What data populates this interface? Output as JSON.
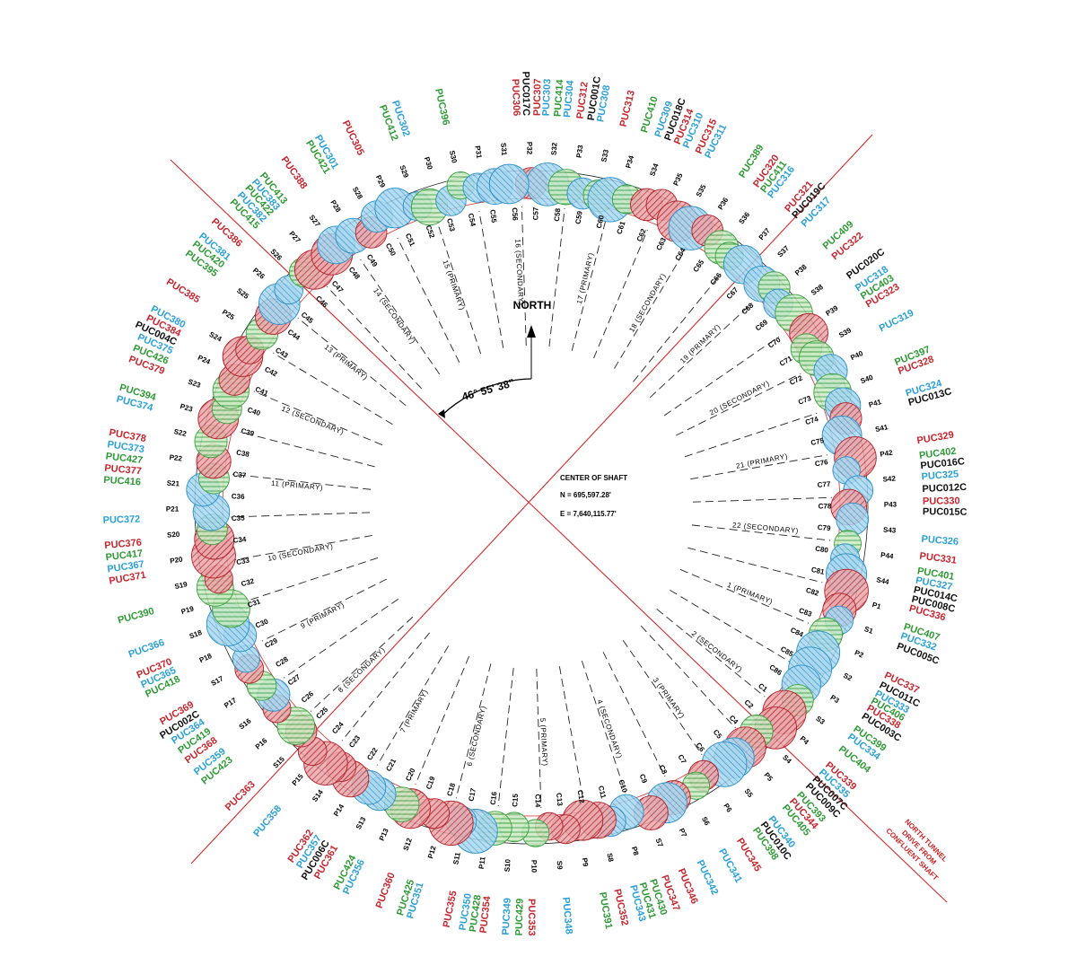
{
  "colors": {
    "red": "#c8262e",
    "blue": "#2aa0d8",
    "green": "#2e9a35",
    "black": "#111111",
    "line_red": "#d42a2a"
  },
  "north_label": "NORTH",
  "angle_label": "46° 55' 38\"",
  "center": {
    "title": "CENTER OF SHAFT",
    "north": "N =    695,597.28'",
    "east": "E = 7,640,115.77'"
  },
  "tunnel_note": [
    "NORTH TUNNEL",
    "DRIVE FROM",
    "CONFLUENT SHAFT"
  ],
  "panels": [
    "1 (PRIMARY)",
    "2 (SECONDARY)",
    "3 (PRIMARY)",
    "4 (SECONDARY)",
    "5 (PRIMARY)",
    "6 (SECONDARY)",
    "7 (PRIMARY)",
    "8 (SECONDARY)",
    "9 (PRIMARY)",
    "10 (SECONDARY)",
    "11 (PRIMARY)",
    "12 (SECONDARY)",
    "13 (PRIMARY)",
    "14 (SECONDARY)",
    "15 (PRIMARY)",
    "16 (SECONDARY)",
    "17 (PRIMARY)",
    "18 (SECONDARY)",
    "19 (PRIMARY)",
    "20 (SECONDARY)",
    "21 (PRIMARY)",
    "22 (SECONDARY)"
  ],
  "c_labels": [
    "C1",
    "C2",
    "C4",
    "C5",
    "C6",
    "C7",
    "C8",
    "C9",
    "C10",
    "C11",
    "C12",
    "C13",
    "C14",
    "C15",
    "C16",
    "C17",
    "C18",
    "C19",
    "C20",
    "C21",
    "C22",
    "C23",
    "C24",
    "C25",
    "C26",
    "C27",
    "C28",
    "C29",
    "C30",
    "C31",
    "C32",
    "C33",
    "C34",
    "C35",
    "C36",
    "C37",
    "C38",
    "C39",
    "C40",
    "C41",
    "C42",
    "C43",
    "C44",
    "C45",
    "C46",
    "C47",
    "C48",
    "C49",
    "C50",
    "C51",
    "C52",
    "C53",
    "C54",
    "C55",
    "C56",
    "C57",
    "C58",
    "C59",
    "C60",
    "C61",
    "C62",
    "C63",
    "C64",
    "C65",
    "C66",
    "C67",
    "C68",
    "C69",
    "C70",
    "C71",
    "C72",
    "C73",
    "C74",
    "C75",
    "C76",
    "C77",
    "C78",
    "C79",
    "C80",
    "C81",
    "C82",
    "C83",
    "C84",
    "C85",
    "C86"
  ],
  "ps_labels": [
    "P1",
    "S1",
    "P2",
    "S2",
    "P3",
    "S3",
    "P4",
    "S4",
    "P5",
    "S5",
    "P6",
    "S6",
    "P7",
    "S7",
    "P8",
    "S8",
    "P9",
    "S9",
    "P10",
    "S10",
    "P11",
    "S11",
    "P12",
    "S12",
    "P13",
    "S13",
    "P14",
    "S14",
    "P15",
    "S15",
    "P16",
    "S16",
    "P17",
    "S17",
    "P18",
    "S18",
    "P19",
    "S19",
    "P20",
    "S20",
    "P21",
    "S21",
    "P22",
    "S22",
    "P23",
    "S23",
    "P24",
    "S24",
    "P25",
    "S25",
    "P26",
    "S26",
    "P27",
    "S27",
    "P28",
    "S28",
    "P29",
    "S29",
    "P30",
    "S30",
    "P31",
    "S31",
    "P32",
    "S32",
    "P33",
    "S33",
    "P34",
    "S34",
    "P35",
    "S35",
    "P36",
    "S36",
    "P37",
    "S37",
    "P38",
    "S38",
    "P39",
    "S39",
    "P40",
    "S40",
    "P41",
    "S41",
    "P42",
    "S42",
    "P43",
    "S43",
    "P44",
    "S44"
  ],
  "puc_labels": [
    {
      "t": "PUC306",
      "c": "red",
      "a": -2.2,
      "r": 462
    },
    {
      "t": "PUC017C",
      "c": "black",
      "a": -0.8,
      "r": 462
    },
    {
      "t": "PUC307",
      "c": "red",
      "a": 0.9,
      "r": 462
    },
    {
      "t": "PUC303",
      "c": "blue",
      "a": 2.2,
      "r": 462
    },
    {
      "t": "PUC414",
      "c": "green",
      "a": 3.9,
      "r": 462
    },
    {
      "t": "PUC304",
      "c": "blue",
      "a": 5.3,
      "r": 462
    },
    {
      "t": "PUC312",
      "c": "red",
      "a": 7.2,
      "r": 462
    },
    {
      "t": "PUC001C",
      "c": "black",
      "a": 8.8,
      "r": 462
    },
    {
      "t": "PUC308",
      "c": "blue",
      "a": 10.2,
      "r": 462
    },
    {
      "t": "PUC313",
      "c": "red",
      "a": 13.6,
      "r": 462
    },
    {
      "t": "PUC410",
      "c": "green",
      "a": 16.8,
      "r": 462
    },
    {
      "t": "PUC309",
      "c": "blue",
      "a": 18.9,
      "r": 462
    },
    {
      "t": "PUC018C",
      "c": "black",
      "a": 20.4,
      "r": 462
    },
    {
      "t": "PUC314",
      "c": "red",
      "a": 21.9,
      "r": 462
    },
    {
      "t": "PUC310",
      "c": "blue",
      "a": 23.3,
      "r": 462
    },
    {
      "t": "PUC315",
      "c": "red",
      "a": 25.3,
      "r": 462
    },
    {
      "t": "PUC311",
      "c": "blue",
      "a": 26.8,
      "r": 462
    },
    {
      "t": "PUC389",
      "c": "green",
      "a": 32.5,
      "r": 462
    },
    {
      "t": "PUC320",
      "c": "red",
      "a": 35.0,
      "r": 462
    },
    {
      "t": "PUC411",
      "c": "green",
      "a": 36.3,
      "r": 462
    },
    {
      "t": "PUC316",
      "c": "blue",
      "a": 37.6,
      "r": 462
    },
    {
      "t": "PUC321",
      "c": "red",
      "a": 40.8,
      "r": 462
    },
    {
      "t": "PUC019C",
      "c": "black",
      "a": 42.2,
      "r": 462
    },
    {
      "t": "PUC317",
      "c": "blue",
      "a": 44.0,
      "r": 462
    },
    {
      "t": "PUC409",
      "c": "green",
      "a": 48.5,
      "r": 462
    },
    {
      "t": "PUC322",
      "c": "red",
      "a": 50.5,
      "r": 462
    },
    {
      "t": "PUC020C",
      "c": "black",
      "a": 54.0,
      "r": 462
    },
    {
      "t": "PUC318",
      "c": "blue",
      "a": 56.2,
      "r": 462
    },
    {
      "t": "PUC403",
      "c": "green",
      "a": 57.6,
      "r": 462
    },
    {
      "t": "PUC323",
      "c": "red",
      "a": 59.0,
      "r": 462
    },
    {
      "t": "PUC319",
      "c": "blue",
      "a": 63.0,
      "r": 462
    },
    {
      "t": "PUC397",
      "c": "green",
      "a": 68.4,
      "r": 462
    },
    {
      "t": "PUC328",
      "c": "red",
      "a": 69.8,
      "r": 462
    },
    {
      "t": "PUC324",
      "c": "blue",
      "a": 73.2,
      "r": 462
    },
    {
      "t": "PUC013C",
      "c": "black",
      "a": 74.6,
      "r": 462
    },
    {
      "t": "PUC329",
      "c": "red",
      "a": 80.3,
      "r": 462
    },
    {
      "t": "PUC402",
      "c": "green",
      "a": 82.5,
      "r": 462
    },
    {
      "t": "PUC016C",
      "c": "black",
      "a": 84.0,
      "r": 462
    },
    {
      "t": "PUC325",
      "c": "blue",
      "a": 85.6,
      "r": 462
    },
    {
      "t": "PUC012C",
      "c": "black",
      "a": 87.4,
      "r": 462
    },
    {
      "t": "PUC330",
      "c": "red",
      "a": 89.2,
      "r": 462
    },
    {
      "t": "PUC015C",
      "c": "black",
      "a": 90.7,
      "r": 462
    },
    {
      "t": "PUC326",
      "c": "blue",
      "a": 94.7,
      "r": 462
    },
    {
      "t": "PUC331",
      "c": "red",
      "a": 97.2,
      "r": 462
    },
    {
      "t": "PUC401",
      "c": "green",
      "a": 99.4,
      "r": 462
    },
    {
      "t": "PUC327",
      "c": "blue",
      "a": 100.8,
      "r": 462
    },
    {
      "t": "PUC014C",
      "c": "black",
      "a": 102.2,
      "r": 462
    },
    {
      "t": "PUC008C",
      "c": "black",
      "a": 103.6,
      "r": 462
    },
    {
      "t": "PUC336",
      "c": "red",
      "a": 105.0,
      "r": 462
    },
    {
      "t": "PUC407",
      "c": "green",
      "a": 107.8,
      "r": 462
    },
    {
      "t": "PUC332",
      "c": "blue",
      "a": 109.2,
      "r": 462
    },
    {
      "t": "PUC005C",
      "c": "black",
      "a": 110.8,
      "r": 462
    },
    {
      "t": "PUC337",
      "c": "red",
      "a": 115.4,
      "r": 462
    },
    {
      "t": "PUC011C",
      "c": "black",
      "a": 117.0,
      "r": 462
    },
    {
      "t": "PUC333",
      "c": "blue",
      "a": 118.4,
      "r": 462
    },
    {
      "t": "PUC406",
      "c": "green",
      "a": 119.6,
      "r": 462
    },
    {
      "t": "PUC338",
      "c": "red",
      "a": 120.8,
      "r": 462
    },
    {
      "t": "PUC003C",
      "c": "black",
      "a": 122.2,
      "r": 462
    },
    {
      "t": "PUC399",
      "c": "green",
      "a": 124.4,
      "r": 462
    },
    {
      "t": "PUC334",
      "c": "blue",
      "a": 125.8,
      "r": 462
    },
    {
      "t": "PUC404",
      "c": "green",
      "a": 128.0,
      "r": 462
    },
    {
      "t": "PUC339",
      "c": "red",
      "a": 131.0,
      "r": 462
    },
    {
      "t": "PUC335",
      "c": "blue",
      "a": 132.4,
      "r": 462
    },
    {
      "t": "PUC007C",
      "c": "black",
      "a": 133.8,
      "r": 462
    },
    {
      "t": "PUC009C",
      "c": "black",
      "a": 135.2,
      "r": 462
    },
    {
      "t": "PUC393",
      "c": "green",
      "a": 137.0,
      "r": 462
    },
    {
      "t": "PUC344",
      "c": "red",
      "a": 138.4,
      "r": 462
    },
    {
      "t": "PUC405",
      "c": "green",
      "a": 139.8,
      "r": 462
    },
    {
      "t": "PUC340",
      "c": "blue",
      "a": 142.4,
      "r": 462
    },
    {
      "t": "PUC010C",
      "c": "black",
      "a": 143.8,
      "r": 462
    },
    {
      "t": "PUC398",
      "c": "green",
      "a": 145.2,
      "r": 462
    },
    {
      "t": "PUC345",
      "c": "red",
      "a": 148.0,
      "r": 462
    },
    {
      "t": "PUC341",
      "c": "blue",
      "a": 151.0,
      "r": 462
    },
    {
      "t": "PUC342",
      "c": "blue",
      "a": 154.6,
      "r": 462
    },
    {
      "t": "PUC346",
      "c": "red",
      "a": 157.6,
      "r": 462
    },
    {
      "t": "PUC347",
      "c": "red",
      "a": 160.2,
      "r": 462
    },
    {
      "t": "PUC430",
      "c": "green",
      "a": 162.0,
      "r": 462
    },
    {
      "t": "PUC431",
      "c": "green",
      "a": 163.6,
      "r": 462
    },
    {
      "t": "PUC343",
      "c": "blue",
      "a": 165.0,
      "r": 462
    },
    {
      "t": "PUC352",
      "c": "red",
      "a": 167.4,
      "r": 462
    },
    {
      "t": "PUC391",
      "c": "green",
      "a": 169.6,
      "r": 462
    },
    {
      "t": "PUC348",
      "c": "blue",
      "a": 175.0,
      "r": 462
    },
    {
      "t": "PUC353",
      "c": "red",
      "a": 180.0,
      "r": 462
    },
    {
      "t": "PUC429",
      "c": "green",
      "a": 181.6,
      "r": 462
    },
    {
      "t": "PUC349",
      "c": "blue",
      "a": 183.4,
      "r": 462
    },
    {
      "t": "PUC354",
      "c": "red",
      "a": 186.4,
      "r": 462
    },
    {
      "t": "PUC428",
      "c": "green",
      "a": 187.8,
      "r": 462
    },
    {
      "t": "PUC350",
      "c": "blue",
      "a": 189.2,
      "r": 462
    },
    {
      "t": "PUC355",
      "c": "red",
      "a": 191.4,
      "r": 462
    },
    {
      "t": "PUC351",
      "c": "blue",
      "a": 196.4,
      "r": 462
    },
    {
      "t": "PUC425",
      "c": "green",
      "a": 197.8,
      "r": 462
    },
    {
      "t": "PUC360",
      "c": "red",
      "a": 200.8,
      "r": 462
    },
    {
      "t": "PUC356",
      "c": "blue",
      "a": 205.6,
      "r": 462
    },
    {
      "t": "PUC424",
      "c": "green",
      "a": 207.0,
      "r": 462
    },
    {
      "t": "PUC361",
      "c": "red",
      "a": 210.0,
      "r": 462
    },
    {
      "t": "PUC006C",
      "c": "black",
      "a": 211.4,
      "r": 462
    },
    {
      "t": "PUC357",
      "c": "blue",
      "a": 212.8,
      "r": 462
    },
    {
      "t": "PUC362",
      "c": "red",
      "a": 214.2,
      "r": 462
    },
    {
      "t": "PUC358",
      "c": "blue",
      "a": 220.0,
      "r": 462
    },
    {
      "t": "PUC363",
      "c": "red",
      "a": 225.2,
      "r": 462
    },
    {
      "t": "PUC423",
      "c": "green",
      "a": 230.0,
      "r": 462
    },
    {
      "t": "PUC359",
      "c": "blue",
      "a": 231.6,
      "r": 462
    },
    {
      "t": "PUC368",
      "c": "red",
      "a": 233.6,
      "r": 462
    },
    {
      "t": "PUC419",
      "c": "green",
      "a": 235.2,
      "r": 462
    },
    {
      "t": "PUC364",
      "c": "blue",
      "a": 236.8,
      "r": 462
    },
    {
      "t": "PUC002C",
      "c": "black",
      "a": 238.2,
      "r": 462
    },
    {
      "t": "PUC369",
      "c": "red",
      "a": 239.8,
      "r": 462
    },
    {
      "t": "PUC418",
      "c": "green",
      "a": 244.0,
      "r": 462
    },
    {
      "t": "PUC365",
      "c": "blue",
      "a": 245.4,
      "r": 462
    },
    {
      "t": "PUC370",
      "c": "red",
      "a": 246.8,
      "r": 462
    },
    {
      "t": "PUC366",
      "c": "blue",
      "a": 249.8,
      "r": 462
    },
    {
      "t": "PUC390",
      "c": "green",
      "a": 254.6,
      "r": 462
    },
    {
      "t": "PUC371",
      "c": "red",
      "a": 260.0,
      "r": 462
    },
    {
      "t": "PUC367",
      "c": "blue",
      "a": 261.6,
      "r": 462
    },
    {
      "t": "PUC417",
      "c": "green",
      "a": 263.2,
      "r": 462
    },
    {
      "t": "PUC376",
      "c": "red",
      "a": 264.8,
      "r": 462
    },
    {
      "t": "PUC372",
      "c": "blue",
      "a": 268.2,
      "r": 462
    },
    {
      "t": "PUC416",
      "c": "green",
      "a": 273.6,
      "r": 462
    },
    {
      "t": "PUC377",
      "c": "red",
      "a": 275.2,
      "r": 462
    },
    {
      "t": "PUC427",
      "c": "green",
      "a": 276.8,
      "r": 462
    },
    {
      "t": "PUC373",
      "c": "blue",
      "a": 278.4,
      "r": 462
    },
    {
      "t": "PUC378",
      "c": "red",
      "a": 280.0,
      "r": 462
    },
    {
      "t": "PUC374",
      "c": "blue",
      "a": 284.6,
      "r": 462
    },
    {
      "t": "PUC394",
      "c": "green",
      "a": 286.2,
      "r": 462
    },
    {
      "t": "PUC379",
      "c": "red",
      "a": 290.2,
      "r": 462
    },
    {
      "t": "PUC426",
      "c": "green",
      "a": 291.8,
      "r": 462
    },
    {
      "t": "PUC375",
      "c": "blue",
      "a": 293.4,
      "r": 462
    },
    {
      "t": "PUC004C",
      "c": "black",
      "a": 294.8,
      "r": 462
    },
    {
      "t": "PUC384",
      "c": "red",
      "a": 296.2,
      "r": 462
    },
    {
      "t": "PUC380",
      "c": "blue",
      "a": 297.6,
      "r": 462
    },
    {
      "t": "PUC385",
      "c": "red",
      "a": 301.8,
      "r": 462
    },
    {
      "t": "PUC395",
      "c": "green",
      "a": 306.4,
      "r": 462
    },
    {
      "t": "PUC420",
      "c": "green",
      "a": 308.0,
      "r": 462
    },
    {
      "t": "PUC381",
      "c": "blue",
      "a": 309.4,
      "r": 462
    },
    {
      "t": "PUC386",
      "c": "red",
      "a": 312.0,
      "r": 462
    },
    {
      "t": "PUC415",
      "c": "green",
      "a": 315.6,
      "r": 462
    },
    {
      "t": "PUC382",
      "c": "blue",
      "a": 317.0,
      "r": 462
    },
    {
      "t": "PUC422",
      "c": "green",
      "a": 318.4,
      "r": 462
    },
    {
      "t": "PUC383",
      "c": "blue",
      "a": 319.6,
      "r": 462
    },
    {
      "t": "PUC413",
      "c": "green",
      "a": 321.0,
      "r": 462
    },
    {
      "t": "PUC388",
      "c": "red",
      "a": 324.6,
      "r": 462
    },
    {
      "t": "PUC421",
      "c": "green",
      "a": 328.6,
      "r": 462
    },
    {
      "t": "PUC301",
      "c": "blue",
      "a": 330.0,
      "r": 462
    },
    {
      "t": "PUC305",
      "c": "red",
      "a": 334.2,
      "r": 462
    },
    {
      "t": "PUC412",
      "c": "green",
      "a": 339.6,
      "r": 462
    },
    {
      "t": "PUC302",
      "c": "blue",
      "a": 341.4,
      "r": 462
    },
    {
      "t": "PUC396",
      "c": "green",
      "a": 347.4,
      "r": 462
    }
  ],
  "circles_count": 120
}
